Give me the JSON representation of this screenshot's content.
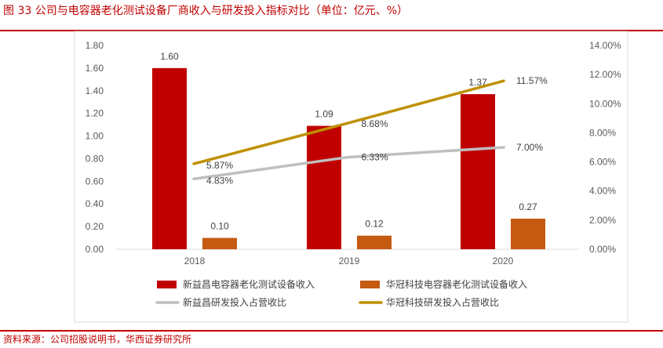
{
  "figure": {
    "title": "图 33 公司与电容器老化测试设备厂商收入与研发投入指标对比（单位：亿元、%）",
    "source": "资料来源：公司招股说明书，华西证券研究所"
  },
  "colors": {
    "accent": "#c00000",
    "bar_xyc": "#c00000",
    "bar_hg": "#c55a11",
    "line_xyc": "#bfbfbf",
    "line_hg": "#bf9000"
  },
  "chart_data": {
    "type": "bar",
    "categories": [
      "2018",
      "2019",
      "2020"
    ],
    "left_axis": {
      "ylim": [
        0,
        1.8
      ],
      "ticks": [
        "0.00",
        "0.20",
        "0.40",
        "0.60",
        "0.80",
        "1.00",
        "1.20",
        "1.40",
        "1.60",
        "1.80"
      ]
    },
    "right_axis": {
      "ylim": [
        0,
        14
      ],
      "ticks": [
        "0.00%",
        "2.00%",
        "4.00%",
        "6.00%",
        "8.00%",
        "10.00%",
        "12.00%",
        "14.00%"
      ]
    },
    "series": [
      {
        "name": "新益昌电容器老化测试设备收入",
        "kind": "bar",
        "axis": "left",
        "values": [
          1.6,
          1.09,
          1.37
        ],
        "labels": [
          "1.60",
          "1.09",
          "1.37"
        ]
      },
      {
        "name": "华冠科技电容器老化测试设备收入",
        "kind": "bar",
        "axis": "left",
        "values": [
          0.1,
          0.12,
          0.27
        ],
        "labels": [
          "0.10",
          "0.12",
          "0.27"
        ]
      },
      {
        "name": "新益昌研发投入占营收比",
        "kind": "line",
        "axis": "right",
        "values": [
          4.83,
          6.33,
          7.0
        ],
        "labels": [
          "4.83%",
          "6.33%",
          "7.00%"
        ]
      },
      {
        "name": "华冠科技研发投入占营收比",
        "kind": "line",
        "axis": "right",
        "values": [
          5.87,
          8.68,
          11.57
        ],
        "labels": [
          "5.87%",
          "8.68%",
          "11.57%"
        ]
      }
    ]
  }
}
